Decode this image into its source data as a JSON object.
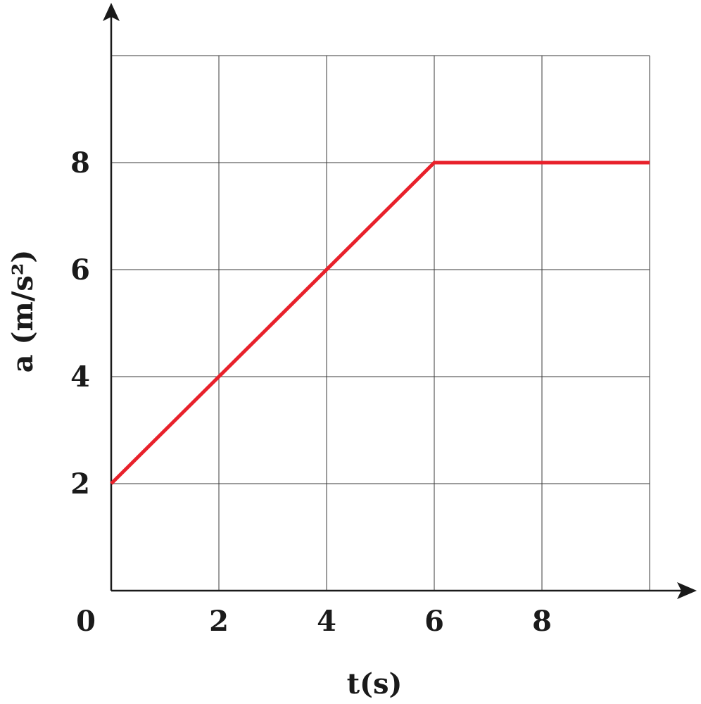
{
  "chart_data": {
    "type": "line",
    "xlabel": "t(s)",
    "ylabel": "a (m/s²)",
    "xlim": [
      0,
      10
    ],
    "ylim": [
      0,
      10
    ],
    "x_ticks": [
      0,
      2,
      4,
      6,
      8
    ],
    "x_tick_labels": [
      "0",
      "2",
      "4",
      "6",
      "8"
    ],
    "y_ticks": [
      2,
      4,
      6,
      8
    ],
    "y_tick_labels": [
      "2",
      "4",
      "6",
      "8"
    ],
    "grid": true,
    "series": [
      {
        "x": [
          0,
          6,
          10
        ],
        "y": [
          2,
          8,
          8
        ],
        "color": "#e8212b"
      }
    ]
  }
}
